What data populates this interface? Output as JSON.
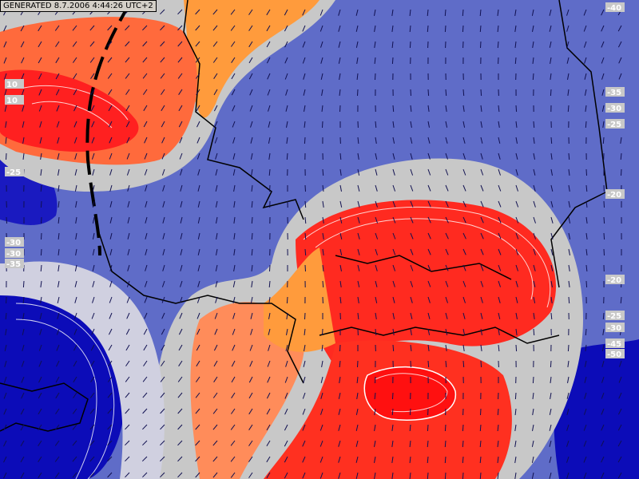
{
  "header": {
    "generated": "GENERATED 8.7.2006 4:44:26 UTC+2"
  },
  "contour_labels": [
    "-40",
    "-35",
    "-30",
    "-25",
    "-20",
    "-20",
    "-25",
    "-30",
    "-45",
    "-50",
    "10",
    "10",
    "-25",
    "-30",
    "-35",
    "-30"
  ]
}
